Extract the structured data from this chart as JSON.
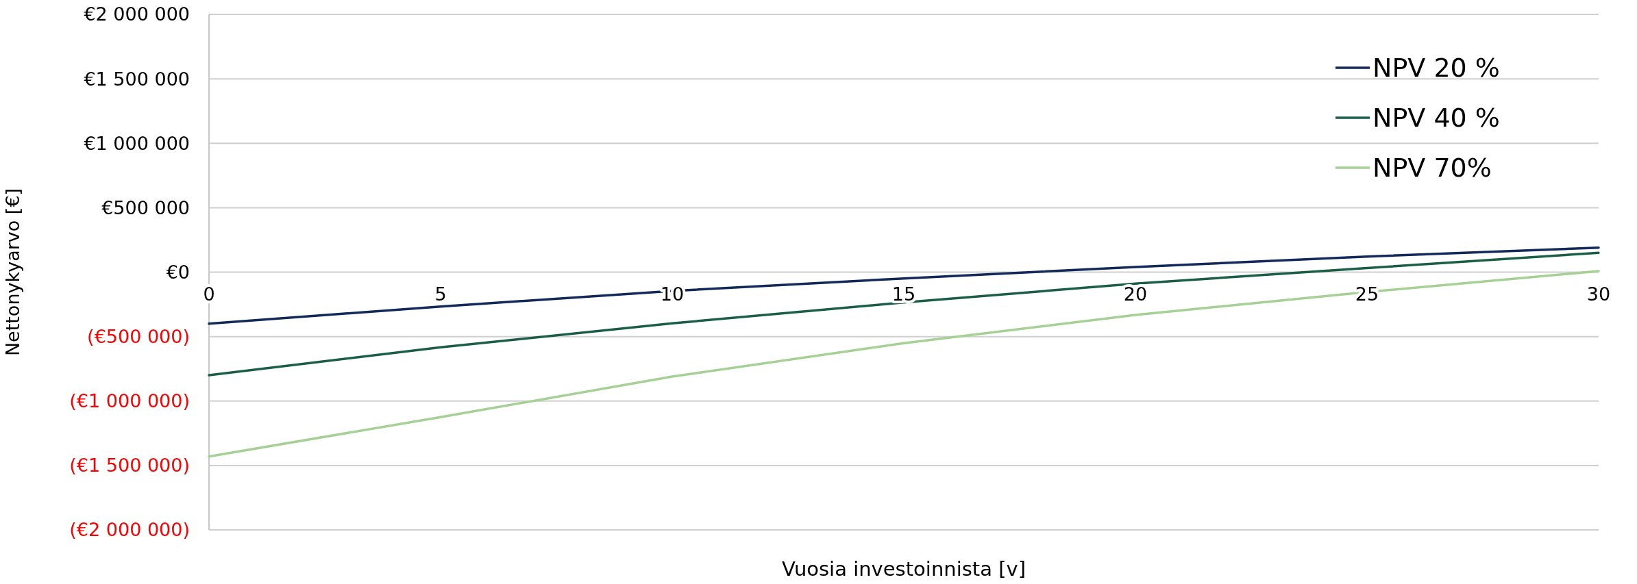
{
  "chart_data": {
    "type": "line",
    "xlabel": "Vuosia investoinnista [v]",
    "ylabel": "Nettonykyarvo [€]",
    "x": [
      0,
      5,
      10,
      15,
      20,
      25,
      30
    ],
    "series": [
      {
        "name": "NPV 20 %",
        "color": "#12295a",
        "values": [
          -400000,
          -267000,
          -146000,
          -49000,
          40000,
          121000,
          190000
        ]
      },
      {
        "name": "NPV 40 %",
        "color": "#1a5e45",
        "values": [
          -800000,
          -583000,
          -397000,
          -235000,
          -89000,
          32000,
          150000
        ]
      },
      {
        "name": "NPV 70%",
        "color": "#a6d096",
        "values": [
          -1430000,
          -1125000,
          -810000,
          -551000,
          -332000,
          -154000,
          8000
        ]
      }
    ],
    "xlim": [
      0,
      30
    ],
    "xticks": [
      0,
      5,
      10,
      15,
      20,
      25,
      30
    ],
    "ylim": [
      -2000000,
      2000000
    ],
    "yticks": [
      {
        "value": 2000000,
        "label": "€2 000 000"
      },
      {
        "value": 1500000,
        "label": "€1 500 000"
      },
      {
        "value": 1000000,
        "label": "€1 000 000"
      },
      {
        "value": 500000,
        "label": "€500 000"
      },
      {
        "value": 0,
        "label": "€0"
      },
      {
        "value": -500000,
        "label": "(€500 000)"
      },
      {
        "value": -1000000,
        "label": "(€1 000 000)"
      },
      {
        "value": -1500000,
        "label": "(€1 500 000)"
      },
      {
        "value": -2000000,
        "label": "(€2 000 000)"
      }
    ],
    "grid": "y",
    "legend": "top right",
    "marker": "none",
    "line_style": "solid"
  }
}
